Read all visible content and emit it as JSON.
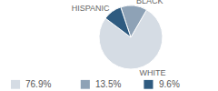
{
  "chart_data": {
    "type": "pie",
    "categories": [
      "WHITE",
      "BLACK",
      "HISPANIC"
    ],
    "values": [
      76.9,
      13.5,
      9.6
    ],
    "value_labels": [
      "76.9%",
      "13.5%",
      "9.6%"
    ],
    "colors": [
      "#d5dce4",
      "#8ea2b6",
      "#2f5b80"
    ]
  }
}
